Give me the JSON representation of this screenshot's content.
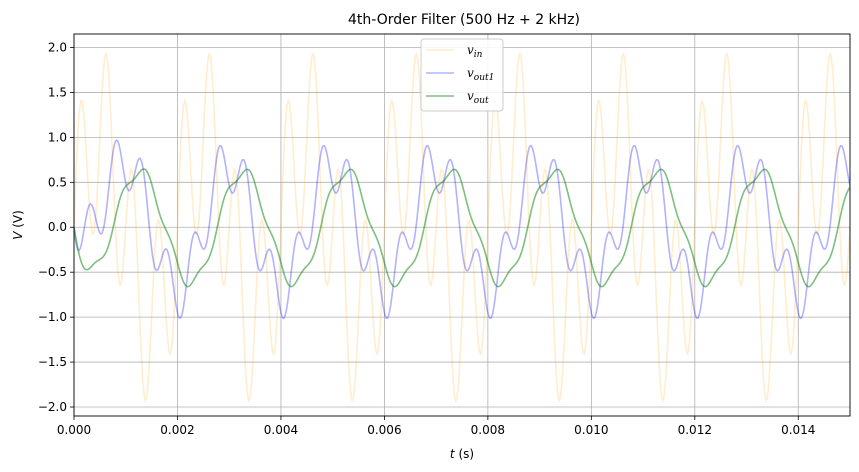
{
  "chart_data": {
    "type": "line",
    "title": "4th-Order Filter (500 Hz + 2 kHz)",
    "xlabel": "t (s)",
    "xlabel_var": "t",
    "xlabel_unit": " (s)",
    "ylabel": "V (V)",
    "ylabel_var": "V",
    "ylabel_unit": " (V)",
    "xlim": [
      0,
      0.015
    ],
    "ylim": [
      -2.1,
      2.15
    ],
    "xticks": [
      0,
      0.002,
      0.004,
      0.006,
      0.008,
      0.01,
      0.012,
      0.014
    ],
    "xtick_labels": [
      "0.000",
      "0.002",
      "0.004",
      "0.006",
      "0.008",
      "0.010",
      "0.012",
      "0.014"
    ],
    "yticks": [
      -2.0,
      -1.5,
      -1.0,
      -0.5,
      0.0,
      0.5,
      1.0,
      1.5,
      2.0
    ],
    "ytick_labels": [
      "−2.0",
      "−1.5",
      "−1.0",
      "−0.5",
      "0.0",
      "0.5",
      "1.0",
      "1.5",
      "2.0"
    ],
    "grid": true,
    "legend_position": "top-center",
    "sample_step": 2e-05,
    "series": [
      {
        "name": "v_in",
        "label_main": "v",
        "label_sub": "in",
        "color": "#ffa500",
        "opacity": 0.2,
        "model": "input",
        "components": [
          {
            "amp": 1.0,
            "freq": 500,
            "phase": 0
          },
          {
            "amp": 1.0,
            "freq": 2000,
            "phase": 0
          }
        ]
      },
      {
        "name": "v_out1",
        "label_main": "v",
        "label_sub": "out1",
        "color": "#0000ff",
        "opacity": 0.3,
        "model": "filtered",
        "components": [
          {
            "amp": 0.707,
            "freq": 500,
            "phase": -1.5708
          },
          {
            "amp": 0.316,
            "freq": 2000,
            "phase": -2.26
          }
        ]
      },
      {
        "name": "v_out",
        "label_main": "v",
        "label_sub": "out",
        "color": "#008000",
        "opacity": 0.5,
        "model": "filtered",
        "components": [
          {
            "amp": 0.62,
            "freq": 500,
            "phase": -2.4
          },
          {
            "amp": 0.062,
            "freq": 2000,
            "phase": -3.55
          }
        ]
      }
    ]
  }
}
